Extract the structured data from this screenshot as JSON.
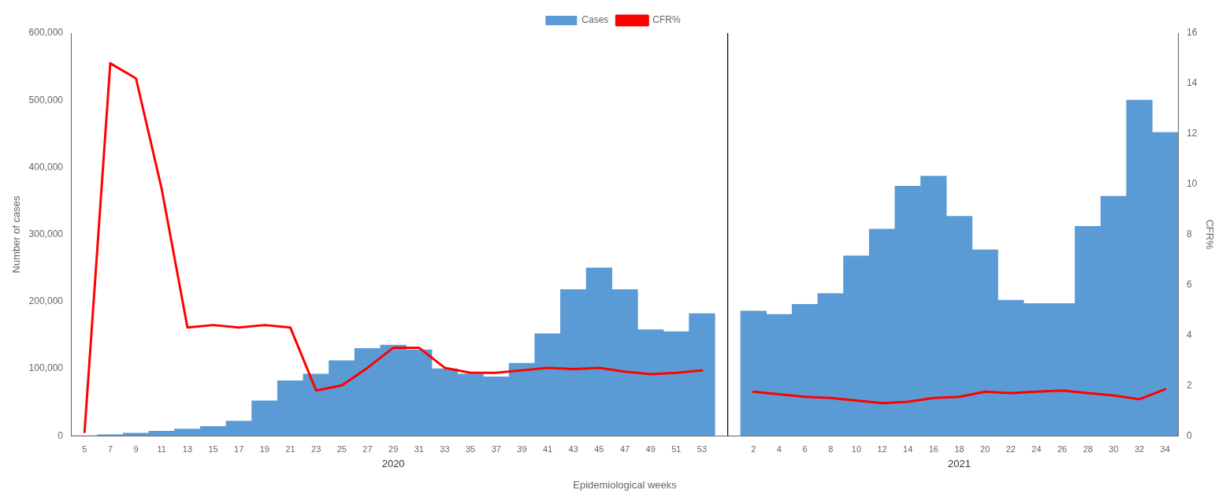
{
  "chart_data": {
    "type": "bar",
    "xlabel": "Epidemiological weeks",
    "ylabel": "Number of cases",
    "y2label": "CFR%",
    "groups": [
      {
        "label": "2020",
        "categories": [
          "5",
          "7",
          "9",
          "11",
          "13",
          "15",
          "17",
          "19",
          "21",
          "23",
          "25",
          "27",
          "29",
          "31",
          "33",
          "35",
          "37",
          "39",
          "41",
          "43",
          "45",
          "47",
          "49",
          "51",
          "53"
        ]
      },
      {
        "label": "2021",
        "categories": [
          "2",
          "4",
          "6",
          "8",
          "10",
          "12",
          "14",
          "16",
          "18",
          "20",
          "22",
          "24",
          "26",
          "28",
          "30",
          "32",
          "34"
        ]
      }
    ],
    "series": [
      {
        "name": "Cases",
        "type": "bar",
        "color": "#5b9bd5",
        "values": [
          100,
          1500,
          4000,
          7000,
          10000,
          14000,
          22000,
          52000,
          82000,
          92000,
          112000,
          130000,
          135000,
          128000,
          100000,
          92000,
          88000,
          108000,
          152000,
          218000,
          250000,
          218000,
          158000,
          155000,
          182000,
          186000,
          181000,
          196000,
          212000,
          268000,
          308000,
          372000,
          387000,
          327000,
          277000,
          202000,
          197000,
          197000,
          312000,
          357000,
          500000,
          452000
        ]
      },
      {
        "name": "CFR%",
        "type": "line",
        "color": "#ff0000",
        "axis": "y2",
        "values": [
          0.15,
          14.8,
          14.2,
          9.8,
          4.3,
          4.4,
          4.3,
          4.4,
          4.3,
          1.8,
          2.0,
          2.7,
          3.5,
          3.5,
          2.7,
          2.5,
          2.5,
          2.6,
          2.7,
          2.65,
          2.7,
          2.55,
          2.45,
          2.5,
          2.6,
          1.75,
          1.65,
          1.55,
          1.5,
          1.4,
          1.3,
          1.35,
          1.5,
          1.55,
          1.75,
          1.7,
          1.75,
          1.8,
          1.7,
          1.6,
          1.45,
          1.85
        ]
      }
    ],
    "ylim": [
      0,
      600000
    ],
    "yticks": [
      0,
      {
        "value": 100000,
        "label": "100,000"
      },
      {
        "value": 200000,
        "label": "200,000"
      },
      {
        "value": 300000,
        "label": "300,000"
      },
      {
        "value": 400000,
        "label": "400,000"
      },
      {
        "value": 500000,
        "label": "500,000"
      },
      {
        "value": 600000,
        "label": "600,000"
      }
    ],
    "y2lim": [
      0,
      16
    ],
    "y2ticks": [
      0,
      2,
      4,
      6,
      8,
      10,
      12,
      14,
      16
    ],
    "grid": false,
    "legend": "top"
  }
}
